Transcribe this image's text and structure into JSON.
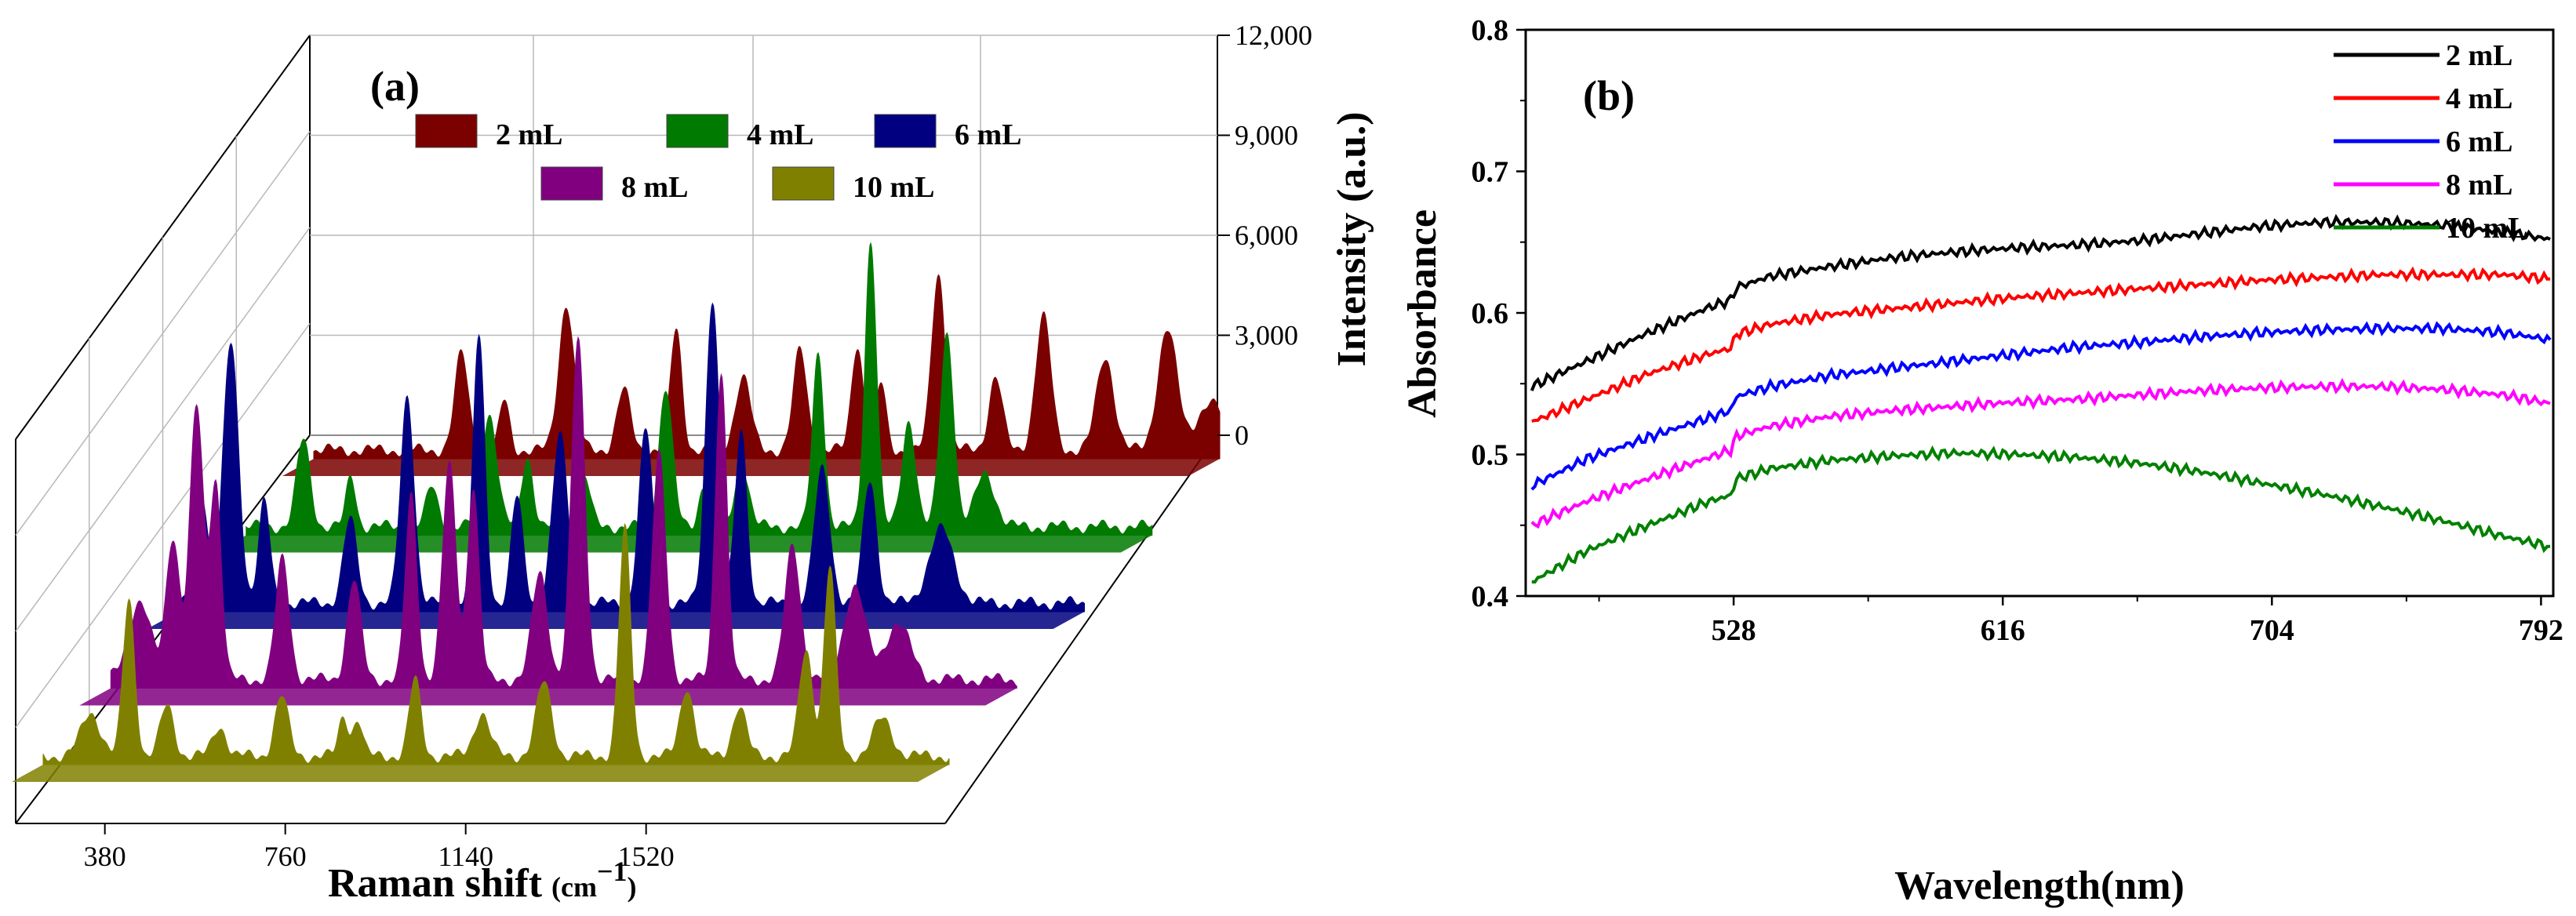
{
  "chart_data": [
    {
      "panel": "(a)",
      "type": "area",
      "style": "3d-waterfall",
      "xlabel": "Raman shift",
      "xunit": "(cm",
      "xunit_exp": "−1",
      "xunit_close": ")",
      "ylabel": "Intensity (a.u.)",
      "xlim": [
        250,
        2150
      ],
      "ylim": [
        0,
        12000
      ],
      "x_ticks": [
        380,
        760,
        1140,
        1520
      ],
      "x_tick_labels": [
        "380",
        "760",
        "1140",
        "1520"
      ],
      "y_ticks": [
        0,
        3000,
        6000,
        9000,
        12000
      ],
      "y_tick_labels": [
        "0",
        "3,000",
        "6,000",
        "9,000",
        "12,000"
      ],
      "legend": [
        "2 mL",
        "4 mL",
        "6 mL",
        "8 mL",
        "10 mL"
      ],
      "series": [
        {
          "name": "2 mL",
          "color": "#7b0000",
          "peaks": [
            [
              560,
              2900,
              14
            ],
            [
              650,
              1500,
              10
            ],
            [
              780,
              4400,
              16
            ],
            [
              900,
              1800,
              14
            ],
            [
              1010,
              3600,
              12
            ],
            [
              1150,
              2200,
              16
            ],
            [
              1270,
              3000,
              14
            ],
            [
              1390,
              3200,
              12
            ],
            [
              1440,
              2000,
              10
            ],
            [
              1560,
              5300,
              14
            ],
            [
              1680,
              2200,
              14
            ],
            [
              1780,
              4000,
              16
            ],
            [
              1910,
              2800,
              18
            ],
            [
              2040,
              3600,
              20
            ],
            [
              2130,
              1400,
              30
            ]
          ]
        },
        {
          "name": "4 mL",
          "color": "#007a00",
          "peaks": [
            [
              370,
              2600,
              14
            ],
            [
              470,
              1500,
              10
            ],
            [
              640,
              1200,
              12
            ],
            [
              760,
              3400,
              16
            ],
            [
              840,
              2100,
              12
            ],
            [
              960,
              1500,
              12
            ],
            [
              1130,
              4200,
              14
            ],
            [
              1210,
              1300,
              10
            ],
            [
              1290,
              1900,
              14
            ],
            [
              1450,
              5200,
              12
            ],
            [
              1560,
              8600,
              12
            ],
            [
              1640,
              3200,
              14
            ],
            [
              1720,
              5800,
              14
            ],
            [
              1800,
              1600,
              20
            ]
          ]
        },
        {
          "name": "6 mL",
          "color": "#000080",
          "peaks": [
            [
              300,
              3300,
              12
            ],
            [
              360,
              7800,
              16
            ],
            [
              430,
              3000,
              12
            ],
            [
              610,
              2500,
              14
            ],
            [
              730,
              6200,
              14
            ],
            [
              880,
              8000,
              12
            ],
            [
              960,
              3200,
              12
            ],
            [
              1050,
              5000,
              16
            ],
            [
              1230,
              5200,
              14
            ],
            [
              1370,
              9200,
              14
            ],
            [
              1430,
              5200,
              12
            ],
            [
              1600,
              4000,
              16
            ],
            [
              1700,
              3700,
              14
            ],
            [
              1850,
              2200,
              26
            ]
          ]
        },
        {
          "name": "8 mL",
          "color": "#800080",
          "peaks": [
            [
              310,
              2300,
              24
            ],
            [
              380,
              4300,
              14
            ],
            [
              430,
              8200,
              14
            ],
            [
              470,
              5900,
              12
            ],
            [
              610,
              3600,
              14
            ],
            [
              760,
              3000,
              14
            ],
            [
              880,
              5500,
              12
            ],
            [
              960,
              6400,
              14
            ],
            [
              1010,
              5800,
              12
            ],
            [
              1150,
              3200,
              16
            ],
            [
              1230,
              10200,
              14
            ],
            [
              1400,
              6700,
              14
            ],
            [
              1530,
              9300,
              12
            ],
            [
              1680,
              4000,
              16
            ],
            [
              1810,
              2800,
              22
            ],
            [
              1900,
              1700,
              26
            ]
          ]
        },
        {
          "name": "10 mL",
          "color": "#808000",
          "peaks": [
            [
              350,
              1300,
              20
            ],
            [
              430,
              4700,
              12
            ],
            [
              510,
              1500,
              14
            ],
            [
              620,
              900,
              14
            ],
            [
              750,
              1800,
              14
            ],
            [
              880,
              1200,
              10
            ],
            [
              910,
              1100,
              10
            ],
            [
              1030,
              2300,
              12
            ],
            [
              1170,
              1300,
              16
            ],
            [
              1300,
              2200,
              16
            ],
            [
              1470,
              6800,
              12
            ],
            [
              1600,
              2100,
              14
            ],
            [
              1710,
              1500,
              14
            ],
            [
              1850,
              3200,
              14
            ],
            [
              1900,
              5700,
              12
            ],
            [
              2010,
              1100,
              20
            ]
          ]
        }
      ]
    },
    {
      "panel": "(b)",
      "type": "line",
      "xlabel": "Wavelength(nm)",
      "ylabel": "Absorbance",
      "xlim": [
        460,
        796
      ],
      "ylim": [
        0.4,
        0.8
      ],
      "x_ticks": [
        528,
        616,
        704,
        792
      ],
      "x_tick_labels": [
        "528",
        "616",
        "704",
        "792"
      ],
      "y_ticks": [
        0.4,
        0.5,
        0.6,
        0.7,
        0.8
      ],
      "y_tick_labels": [
        "0.4",
        "0.5",
        "0.6",
        "0.7",
        "0.8"
      ],
      "legend_position": "top-right",
      "series": [
        {
          "name": "2 mL",
          "color": "#000000",
          "x": [
            462,
            480,
            500,
            520,
            527,
            529,
            540,
            560,
            580,
            600,
            620,
            640,
            660,
            680,
            700,
            720,
            740,
            760,
            780,
            795
          ],
          "y": [
            0.548,
            0.566,
            0.586,
            0.604,
            0.609,
            0.618,
            0.626,
            0.633,
            0.639,
            0.643,
            0.646,
            0.648,
            0.651,
            0.656,
            0.661,
            0.664,
            0.664,
            0.662,
            0.657,
            0.652
          ]
        },
        {
          "name": "4 mL",
          "color": "#ff0000",
          "x": [
            462,
            480,
            500,
            520,
            527,
            529,
            540,
            560,
            580,
            600,
            620,
            640,
            660,
            680,
            700,
            720,
            740,
            760,
            780,
            795
          ],
          "y": [
            0.523,
            0.539,
            0.557,
            0.571,
            0.575,
            0.585,
            0.592,
            0.599,
            0.603,
            0.607,
            0.611,
            0.614,
            0.617,
            0.62,
            0.623,
            0.625,
            0.627,
            0.627,
            0.627,
            0.624
          ]
        },
        {
          "name": "6 mL",
          "color": "#0000ff",
          "x": [
            462,
            480,
            500,
            520,
            527,
            529,
            540,
            560,
            580,
            600,
            620,
            640,
            660,
            680,
            700,
            720,
            740,
            760,
            780,
            795
          ],
          "y": [
            0.478,
            0.497,
            0.512,
            0.526,
            0.531,
            0.541,
            0.548,
            0.556,
            0.561,
            0.566,
            0.571,
            0.576,
            0.579,
            0.583,
            0.586,
            0.588,
            0.589,
            0.589,
            0.586,
            0.581
          ]
        },
        {
          "name": "8 mL",
          "color": "#ff00ff",
          "x": [
            462,
            480,
            500,
            520,
            527,
            529,
            540,
            560,
            580,
            600,
            620,
            640,
            660,
            680,
            700,
            720,
            740,
            760,
            780,
            795
          ],
          "y": [
            0.45,
            0.467,
            0.483,
            0.498,
            0.503,
            0.513,
            0.52,
            0.527,
            0.531,
            0.534,
            0.537,
            0.539,
            0.542,
            0.545,
            0.547,
            0.548,
            0.548,
            0.546,
            0.542,
            0.536
          ]
        },
        {
          "name": "10 mL",
          "color": "#008000",
          "x": [
            462,
            480,
            500,
            520,
            527,
            529,
            540,
            560,
            580,
            600,
            620,
            640,
            660,
            680,
            700,
            720,
            740,
            760,
            780,
            795
          ],
          "y": [
            0.41,
            0.432,
            0.45,
            0.467,
            0.471,
            0.483,
            0.49,
            0.496,
            0.499,
            0.501,
            0.5,
            0.498,
            0.494,
            0.488,
            0.48,
            0.472,
            0.463,
            0.453,
            0.442,
            0.435
          ]
        }
      ]
    }
  ]
}
